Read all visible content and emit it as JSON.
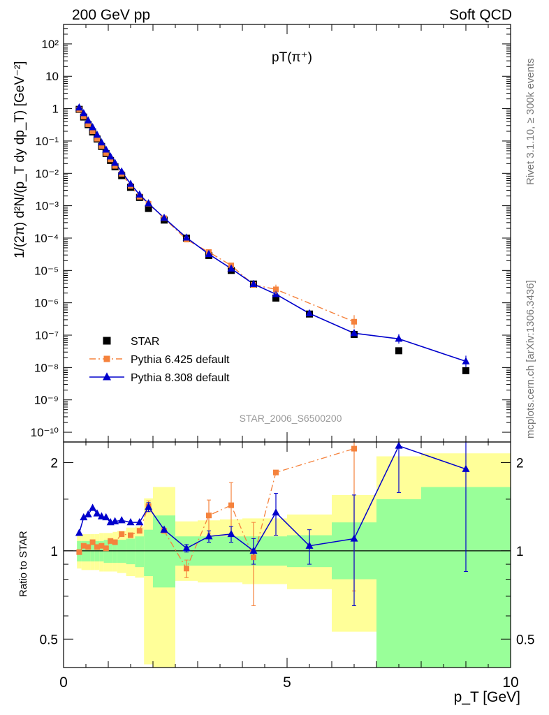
{
  "header": {
    "energy": "200 GeV pp",
    "group": "Soft QCD",
    "side_text": "Rivet 3.1.10, ≥ 300k events",
    "side_url": "mcplots.cern.ch [arXiv:1306.3436]"
  },
  "chart_data": [
    {
      "type": "scatter",
      "panel": "main",
      "title": "pT(π⁺)",
      "xlabel": "p_T [GeV]",
      "ylabel": "1/(2π) d²N/(p_T dy dp_T) [GeV⁻²]",
      "analysis_id": "STAR_2006_S6500200",
      "log_y": true,
      "xlim": [
        0,
        10
      ],
      "ylim": [
        5e-11,
        400
      ],
      "x_ticks": [
        "0",
        "5",
        "10"
      ],
      "y_ticks": [
        "10⁻¹⁰",
        "10⁻⁹",
        "10⁻⁸",
        "10⁻⁷",
        "10⁻⁶",
        "10⁻⁵",
        "10⁻⁴",
        "10⁻³",
        "10⁻²",
        "10⁻¹",
        "1",
        "10",
        "10²"
      ],
      "legend_placement": "bottom-left",
      "series": [
        {
          "name": "STAR",
          "color": "#000000",
          "marker": "square",
          "x": [
            0.35,
            0.45,
            0.55,
            0.65,
            0.75,
            0.85,
            0.95,
            1.05,
            1.15,
            1.3,
            1.5,
            1.7,
            1.9,
            2.25,
            2.75,
            3.25,
            3.75,
            4.25,
            4.75,
            5.5,
            6.5,
            7.5,
            9.0
          ],
          "y": [
            0.95,
            0.55,
            0.32,
            0.19,
            0.115,
            0.068,
            0.041,
            0.025,
            0.016,
            0.0085,
            0.0037,
            0.0018,
            0.00082,
            0.00036,
            0.0001,
            2.9e-05,
            1e-05,
            3.8e-06,
            1.4e-06,
            4.5e-07,
            1.05e-07,
            3.3e-08,
            8e-09
          ]
        },
        {
          "name": "Pythia 6.425 default",
          "color": "#f5823c",
          "marker": "square",
          "line": "dashdot",
          "x": [
            0.35,
            0.45,
            0.55,
            0.65,
            0.75,
            0.85,
            0.95,
            1.05,
            1.15,
            1.3,
            1.5,
            1.7,
            1.9,
            2.25,
            2.75,
            3.25,
            3.75,
            4.25,
            4.75,
            6.5
          ],
          "y": [
            0.94,
            0.57,
            0.33,
            0.2,
            0.118,
            0.07,
            0.042,
            0.027,
            0.017,
            0.0097,
            0.0041,
            0.0019,
            0.00115,
            0.00041,
            9e-05,
            3.7e-05,
            1.43e-05,
            3.6e-06,
            2.6e-06,
            2.6e-07
          ]
        },
        {
          "name": "Pythia 8.308 default",
          "color": "#0000cc",
          "marker": "triangle",
          "line": "solid",
          "x": [
            0.35,
            0.45,
            0.55,
            0.65,
            0.75,
            0.85,
            0.95,
            1.05,
            1.15,
            1.3,
            1.5,
            1.7,
            1.9,
            2.25,
            2.75,
            3.25,
            3.75,
            4.25,
            4.75,
            5.5,
            6.5,
            7.5,
            9.0
          ],
          "y": [
            1.08,
            0.72,
            0.43,
            0.265,
            0.155,
            0.09,
            0.054,
            0.033,
            0.021,
            0.0113,
            0.0047,
            0.0022,
            0.00118,
            0.00042,
            0.000103,
            3.2e-05,
            1.14e-05,
            3.8e-06,
            1.85e-06,
            4.7e-07,
            1.15e-07,
            7.7e-08,
            1.55e-08
          ]
        }
      ]
    },
    {
      "type": "scatter",
      "panel": "ratio",
      "ylabel": "Ratio to STAR",
      "xlabel": "p_T [GeV]",
      "log_y": true,
      "xlim": [
        0,
        10
      ],
      "ylim": [
        0.4,
        2.35
      ],
      "x_ticks": [
        "0",
        "5",
        "10"
      ],
      "y_ticks": [
        "0.5",
        "1",
        "2"
      ],
      "bins": [
        [
          0.3,
          0.4
        ],
        [
          0.4,
          0.5
        ],
        [
          0.5,
          0.6
        ],
        [
          0.6,
          0.7
        ],
        [
          0.7,
          0.8
        ],
        [
          0.8,
          0.9
        ],
        [
          0.9,
          1.0
        ],
        [
          1.0,
          1.1
        ],
        [
          1.1,
          1.2
        ],
        [
          1.2,
          1.4
        ],
        [
          1.4,
          1.6
        ],
        [
          1.6,
          1.8
        ],
        [
          1.8,
          2.0
        ],
        [
          2.0,
          2.5
        ],
        [
          2.5,
          3.0
        ],
        [
          3.0,
          3.5
        ],
        [
          3.5,
          4.0
        ],
        [
          4.0,
          4.5
        ],
        [
          4.5,
          5.0
        ],
        [
          5.0,
          6.0
        ],
        [
          6.0,
          7.0
        ],
        [
          7.0,
          8.0
        ],
        [
          8.0,
          10.0
        ]
      ],
      "band_inner": [
        [
          0.92,
          1.08
        ],
        [
          0.92,
          1.08
        ],
        [
          0.92,
          1.08
        ],
        [
          0.92,
          1.08
        ],
        [
          0.92,
          1.08
        ],
        [
          0.92,
          1.08
        ],
        [
          0.91,
          1.09
        ],
        [
          0.91,
          1.09
        ],
        [
          0.91,
          1.09
        ],
        [
          0.91,
          1.09
        ],
        [
          0.9,
          1.1
        ],
        [
          0.88,
          1.12
        ],
        [
          0.82,
          1.18
        ],
        [
          0.75,
          1.32
        ],
        [
          0.89,
          1.12
        ],
        [
          0.89,
          1.12
        ],
        [
          0.89,
          1.12
        ],
        [
          0.89,
          1.12
        ],
        [
          0.89,
          1.12
        ],
        [
          0.88,
          1.13
        ],
        [
          0.8,
          1.25
        ],
        [
          0.4,
          1.5
        ],
        [
          0.4,
          1.65
        ]
      ],
      "band_outer": [
        [
          0.87,
          1.13
        ],
        [
          0.86,
          1.14
        ],
        [
          0.86,
          1.14
        ],
        [
          0.86,
          1.14
        ],
        [
          0.86,
          1.14
        ],
        [
          0.85,
          1.15
        ],
        [
          0.85,
          1.15
        ],
        [
          0.85,
          1.15
        ],
        [
          0.85,
          1.16
        ],
        [
          0.84,
          1.17
        ],
        [
          0.82,
          1.2
        ],
        [
          0.81,
          1.21
        ],
        [
          0.41,
          1.51
        ],
        [
          0.38,
          1.65
        ],
        [
          0.79,
          1.26
        ],
        [
          0.78,
          1.27
        ],
        [
          0.78,
          1.28
        ],
        [
          0.77,
          1.29
        ],
        [
          0.77,
          1.29
        ],
        [
          0.74,
          1.33
        ],
        [
          0.53,
          1.55
        ],
        [
          0.4,
          2.1
        ],
        [
          0.4,
          2.15
        ]
      ],
      "series": [
        {
          "name": "Pythia 6.425 default",
          "color": "#f5823c",
          "x": [
            0.35,
            0.45,
            0.55,
            0.65,
            0.75,
            0.85,
            0.95,
            1.05,
            1.15,
            1.3,
            1.5,
            1.7,
            1.9,
            2.25,
            2.75,
            3.25,
            3.75,
            4.25,
            4.75,
            6.5
          ],
          "y": [
            0.99,
            1.04,
            1.03,
            1.07,
            1.03,
            1.04,
            1.02,
            1.08,
            1.07,
            1.14,
            1.13,
            1.17,
            1.42,
            1.17,
            0.87,
            1.32,
            1.43,
            0.95,
            1.85,
            2.23
          ],
          "err": [
            0,
            0,
            0,
            0,
            0,
            0,
            0,
            0,
            0,
            0,
            0,
            0,
            0.06,
            0,
            0.06,
            0.17,
            0.28,
            0.3,
            0,
            1.5
          ]
        },
        {
          "name": "Pythia 8.308 default",
          "color": "#0000cc",
          "x": [
            0.35,
            0.45,
            0.55,
            0.65,
            0.75,
            0.85,
            0.95,
            1.05,
            1.15,
            1.3,
            1.5,
            1.7,
            1.9,
            2.25,
            2.75,
            3.25,
            3.75,
            4.25,
            4.75,
            5.5,
            6.5,
            7.5,
            9.0
          ],
          "y": [
            1.15,
            1.3,
            1.33,
            1.4,
            1.34,
            1.31,
            1.3,
            1.25,
            1.26,
            1.27,
            1.25,
            1.25,
            1.41,
            1.18,
            1.02,
            1.12,
            1.14,
            1.0,
            1.35,
            1.04,
            1.1,
            2.28,
            1.9
          ],
          "err": [
            0,
            0,
            0,
            0,
            0,
            0,
            0,
            0,
            0,
            0,
            0,
            0,
            0.05,
            0,
            0.03,
            0.05,
            0.07,
            0.1,
            0.22,
            0.14,
            0.45,
            0.7,
            1.05
          ]
        }
      ]
    }
  ]
}
